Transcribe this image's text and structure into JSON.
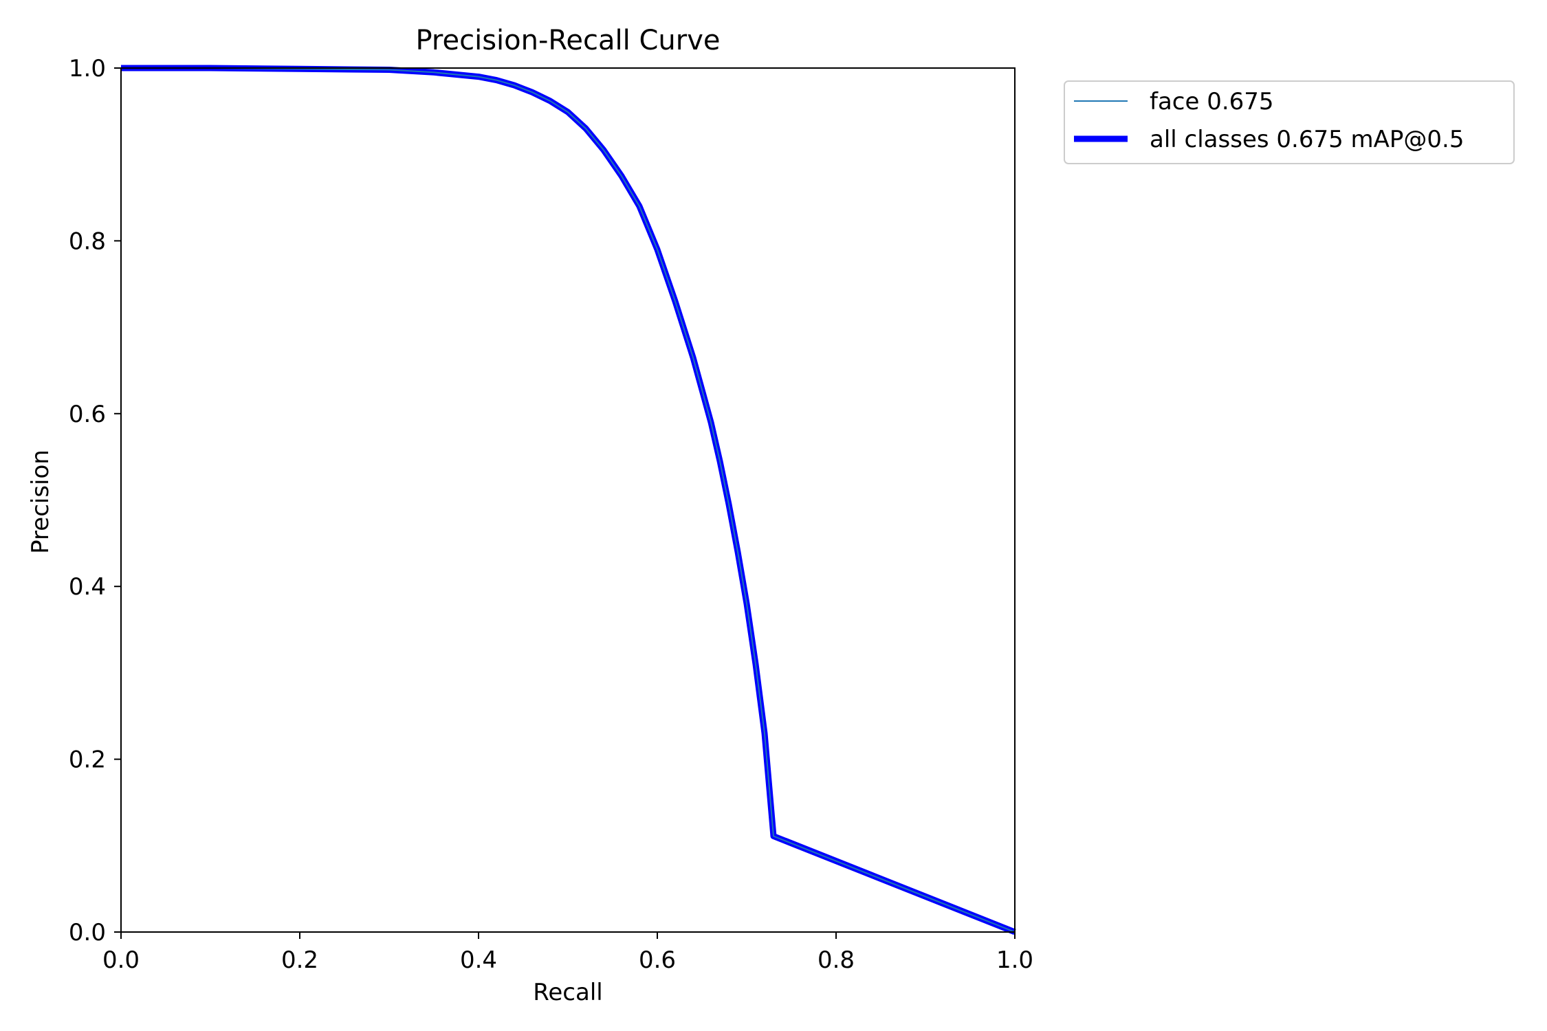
{
  "chart_data": {
    "type": "line",
    "title": "Precision-Recall Curve",
    "xlabel": "Recall",
    "ylabel": "Precision",
    "xlim": [
      0.0,
      1.0
    ],
    "ylim": [
      0.0,
      1.0
    ],
    "xticks": [
      0.0,
      0.2,
      0.4,
      0.6,
      0.8,
      1.0
    ],
    "yticks": [
      0.0,
      0.2,
      0.4,
      0.6,
      0.8,
      1.0
    ],
    "xtick_labels": [
      "0.0",
      "0.2",
      "0.4",
      "0.6",
      "0.8",
      "1.0"
    ],
    "ytick_labels": [
      "0.0",
      "0.2",
      "0.4",
      "0.6",
      "0.8",
      "1.0"
    ],
    "grid": false,
    "legend_position": "outside-top-right",
    "series": [
      {
        "name": "face 0.675",
        "color": "#1f77b4",
        "linewidth": "thin",
        "x": [
          0.0,
          0.1,
          0.2,
          0.3,
          0.35,
          0.4,
          0.42,
          0.44,
          0.46,
          0.48,
          0.5,
          0.52,
          0.54,
          0.56,
          0.58,
          0.6,
          0.62,
          0.64,
          0.66,
          0.67,
          0.68,
          0.69,
          0.7,
          0.71,
          0.72,
          0.73,
          1.0
        ],
        "y": [
          1.0,
          1.0,
          0.999,
          0.998,
          0.995,
          0.99,
          0.986,
          0.98,
          0.972,
          0.962,
          0.949,
          0.93,
          0.905,
          0.875,
          0.84,
          0.79,
          0.73,
          0.665,
          0.59,
          0.545,
          0.495,
          0.44,
          0.38,
          0.31,
          0.23,
          0.111,
          0.0
        ]
      },
      {
        "name": "all classes 0.675 mAP@0.5",
        "color": "#0000ff",
        "linewidth": "thick",
        "x": [
          0.0,
          0.1,
          0.2,
          0.3,
          0.35,
          0.4,
          0.42,
          0.44,
          0.46,
          0.48,
          0.5,
          0.52,
          0.54,
          0.56,
          0.58,
          0.6,
          0.62,
          0.64,
          0.66,
          0.67,
          0.68,
          0.69,
          0.7,
          0.71,
          0.72,
          0.73,
          1.0
        ],
        "y": [
          1.0,
          1.0,
          0.999,
          0.998,
          0.995,
          0.99,
          0.986,
          0.98,
          0.972,
          0.962,
          0.949,
          0.93,
          0.905,
          0.875,
          0.84,
          0.79,
          0.73,
          0.665,
          0.59,
          0.545,
          0.495,
          0.44,
          0.38,
          0.31,
          0.23,
          0.111,
          0.0
        ]
      }
    ]
  }
}
